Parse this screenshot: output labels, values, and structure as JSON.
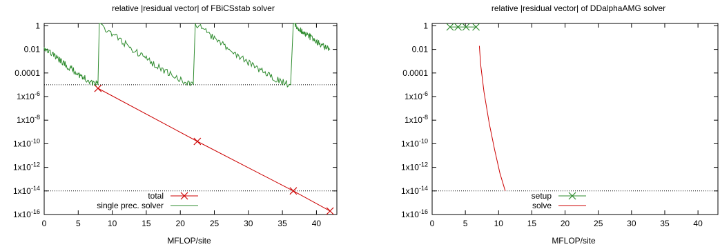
{
  "chart_data": [
    {
      "type": "line",
      "title": "relative |residual vector| of FBiCSstab solver",
      "xlabel": "MFLOP/site",
      "ylabel": "",
      "xlim": [
        0,
        43
      ],
      "ylim_log10": [
        -16,
        0.2
      ],
      "y_scale": "log",
      "x_ticks": [
        0,
        5,
        10,
        15,
        20,
        25,
        30,
        35,
        40
      ],
      "y_ticks": [
        {
          "exp": 0,
          "label": "1"
        },
        {
          "exp": -2,
          "label": "0.01"
        },
        {
          "exp": -4,
          "label": "0.0001"
        },
        {
          "exp": -6,
          "label": "1x10",
          "sup": "-6"
        },
        {
          "exp": -8,
          "label": "1x10",
          "sup": "-8"
        },
        {
          "exp": -10,
          "label": "1x10",
          "sup": "-10"
        },
        {
          "exp": -12,
          "label": "1x10",
          "sup": "-12"
        },
        {
          "exp": -14,
          "label": "1x10",
          "sup": "-14"
        },
        {
          "exp": -16,
          "label": "1x10",
          "sup": "-16"
        }
      ],
      "hlines_log10": [
        -5,
        -14
      ],
      "legend_position": "bottom-left",
      "series": [
        {
          "name": "total",
          "color": "#cc0000",
          "marker": "x",
          "points": [
            [
              7.9,
              -5.3
            ],
            [
              22.5,
              -9.8
            ],
            [
              36.6,
              -14.0
            ],
            [
              42.0,
              -15.7
            ]
          ]
        },
        {
          "name": "single prec. solver",
          "color": "#2e8b2e",
          "marker": "none",
          "segments": [
            {
              "x0": 0,
              "x1": 7.9,
              "y0": -1.8,
              "y1": -5.0
            },
            {
              "x0": 8.1,
              "x1": 21.9,
              "y0": 0.2,
              "y1": -5.0
            },
            {
              "x0": 22.2,
              "x1": 36.2,
              "y0": 0.2,
              "y1": -5.0
            },
            {
              "x0": 36.6,
              "x1": 42.0,
              "y0": 0.2,
              "y1": -2.0
            }
          ]
        }
      ]
    },
    {
      "type": "line",
      "title": "relative |residual vector| of DDalphaAMG solver",
      "xlabel": "MFLOP/site",
      "ylabel": "",
      "xlim": [
        0,
        43
      ],
      "ylim_log10": [
        -16,
        0.2
      ],
      "y_scale": "log",
      "x_ticks": [
        0,
        5,
        10,
        15,
        20,
        25,
        30,
        35,
        40
      ],
      "y_ticks": [
        {
          "exp": 0,
          "label": "1"
        },
        {
          "exp": -2,
          "label": "0.01"
        },
        {
          "exp": -4,
          "label": "0.0001"
        },
        {
          "exp": -6,
          "label": "1x10",
          "sup": "-6"
        },
        {
          "exp": -8,
          "label": "1x10",
          "sup": "-8"
        },
        {
          "exp": -10,
          "label": "1x10",
          "sup": "-10"
        },
        {
          "exp": -12,
          "label": "1x10",
          "sup": "-12"
        },
        {
          "exp": -14,
          "label": "1x10",
          "sup": "-14"
        },
        {
          "exp": -16,
          "label": "1x10",
          "sup": "-16"
        }
      ],
      "hlines_log10": [
        -14
      ],
      "legend_position": "bottom-left",
      "series": [
        {
          "name": "setup",
          "color": "#2e8b2e",
          "marker": "x",
          "points": [
            [
              2.7,
              -0.1
            ],
            [
              3.9,
              -0.1
            ],
            [
              5.1,
              -0.1
            ],
            [
              6.6,
              -0.1
            ]
          ]
        },
        {
          "name": "solve",
          "color": "#cc0000",
          "marker": "none",
          "points": [
            [
              7.1,
              -1.7
            ],
            [
              7.3,
              -3.3
            ],
            [
              7.8,
              -5.6
            ],
            [
              8.6,
              -8.3
            ],
            [
              9.4,
              -10.5
            ],
            [
              10.2,
              -12.5
            ],
            [
              11.0,
              -14.0
            ]
          ]
        }
      ]
    }
  ]
}
